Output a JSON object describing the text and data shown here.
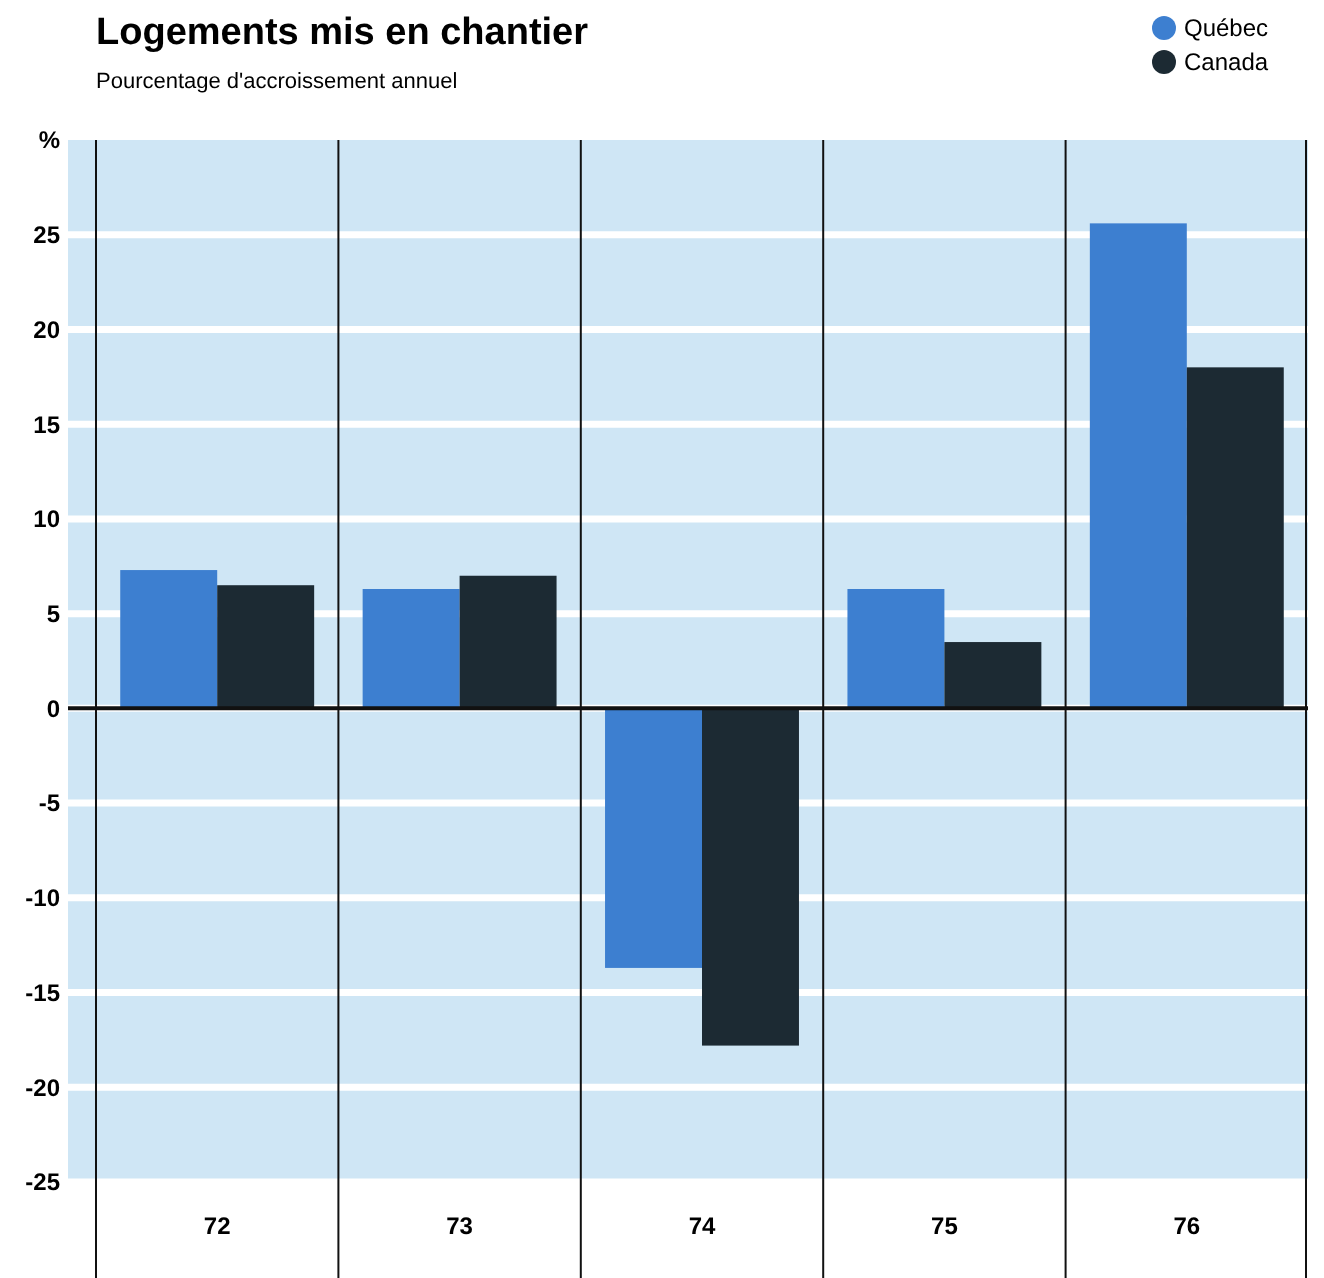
{
  "chart_data": {
    "type": "bar",
    "title": "Logements mis en chantier",
    "subtitle": "Pourcentage d'accroissement annuel",
    "categories": [
      "72",
      "73",
      "74",
      "75",
      "76"
    ],
    "series": [
      {
        "name": "Québec",
        "color": "#3d7fd0",
        "values": [
          7.3,
          6.3,
          -13.7,
          6.3,
          25.6
        ]
      },
      {
        "name": "Canada",
        "color": "#1c2a33",
        "values": [
          6.5,
          7.0,
          -17.8,
          3.5,
          18.0
        ]
      }
    ],
    "ylim": [
      -25,
      30
    ],
    "yticks": [
      {
        "value": 30,
        "label": "%"
      },
      25,
      20,
      15,
      10,
      5,
      0,
      -5,
      -10,
      -15,
      -20,
      -25
    ],
    "grid": "y",
    "legend": "top right"
  }
}
